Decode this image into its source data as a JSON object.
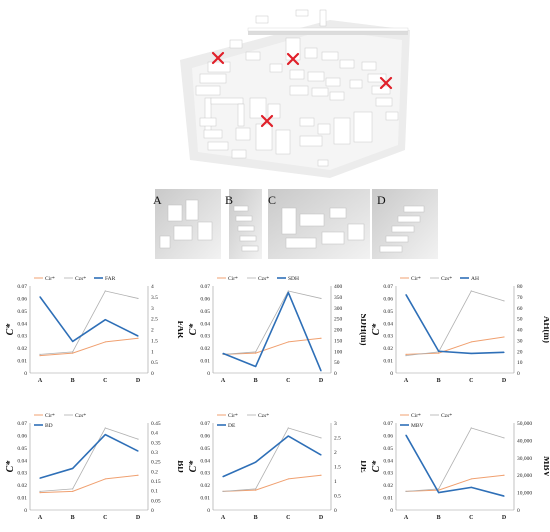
{
  "scene": {
    "panel_labels": [
      "A",
      "B",
      "C",
      "D"
    ],
    "marker_color": "#e0202a"
  },
  "colors": {
    "cir": "#f0a070",
    "czs": "#b0b0b0",
    "metric": "#2e6fb7"
  },
  "chart_data": [
    {
      "type": "line",
      "categories": [
        "A",
        "B",
        "C",
        "D"
      ],
      "ylabel": "C*",
      "y2label": "FAR",
      "ylim": [
        0,
        0.07
      ],
      "yticks": [
        "0",
        "0.01",
        "0.02",
        "0.03",
        "0.04",
        "0.05",
        "0.06",
        "0.07"
      ],
      "y2lim": [
        0,
        4
      ],
      "y2ticks": [
        "0",
        "0.5",
        "1",
        "1.5",
        "2",
        "2.5",
        "3",
        "3.5",
        "4"
      ],
      "legend": "top-left",
      "series": [
        {
          "name": "Cir*",
          "values": [
            0.014,
            0.016,
            0.025,
            0.028
          ],
          "axis": "left"
        },
        {
          "name": "Czs*",
          "values": [
            0.015,
            0.017,
            0.066,
            0.06
          ],
          "axis": "left"
        },
        {
          "name": "FAR",
          "values": [
            3.5,
            1.45,
            2.45,
            1.7
          ],
          "axis": "right"
        }
      ]
    },
    {
      "type": "line",
      "categories": [
        "A",
        "B",
        "C",
        "D"
      ],
      "ylabel": "C*",
      "y2label": "SDH(m)",
      "ylim": [
        0,
        0.07
      ],
      "yticks": [
        "0",
        "0.01",
        "0.02",
        "0.03",
        "0.04",
        "0.05",
        "0.06",
        "0.07"
      ],
      "y2lim": [
        0,
        400
      ],
      "y2ticks": [
        "0",
        "50",
        "100",
        "150",
        "200",
        "250",
        "300",
        "350",
        "400"
      ],
      "legend": "top-left",
      "series": [
        {
          "name": "Cir*",
          "values": [
            0.015,
            0.016,
            0.025,
            0.028
          ],
          "axis": "left"
        },
        {
          "name": "Czs*",
          "values": [
            0.015,
            0.017,
            0.066,
            0.06
          ],
          "axis": "left"
        },
        {
          "name": "SDH",
          "values": [
            90,
            30,
            370,
            10
          ],
          "axis": "right"
        }
      ]
    },
    {
      "type": "line",
      "categories": [
        "A",
        "B",
        "C",
        "D"
      ],
      "ylabel": "C*",
      "y2label": "AH(m)",
      "ylim": [
        0,
        0.07
      ],
      "yticks": [
        "0",
        "0.01",
        "0.02",
        "0.03",
        "0.04",
        "0.05",
        "0.06",
        "0.07"
      ],
      "y2lim": [
        0,
        80
      ],
      "y2ticks": [
        "0",
        "10",
        "20",
        "30",
        "40",
        "50",
        "60",
        "70",
        "80"
      ],
      "legend": "top-left",
      "series": [
        {
          "name": "Cir*",
          "values": [
            0.015,
            0.016,
            0.025,
            0.029
          ],
          "axis": "left"
        },
        {
          "name": "Czs*",
          "values": [
            0.014,
            0.017,
            0.066,
            0.058
          ],
          "axis": "left"
        },
        {
          "name": "AH",
          "values": [
            72,
            20,
            18,
            19
          ],
          "axis": "right"
        }
      ]
    },
    {
      "type": "line",
      "categories": [
        "A",
        "B",
        "C",
        "D"
      ],
      "ylabel": "C*",
      "y2label": "BD",
      "ylim": [
        0,
        0.07
      ],
      "yticks": [
        "0",
        "0.01",
        "0.02",
        "0.03",
        "0.04",
        "0.05",
        "0.06",
        "0.07"
      ],
      "y2lim": [
        0,
        0.45
      ],
      "y2ticks": [
        "0",
        "0.05",
        "0.1",
        "0.15",
        "0.2",
        "0.25",
        "0.3",
        "0.35",
        "0.4",
        "0.45"
      ],
      "legend": "top-left",
      "series": [
        {
          "name": "Cir*",
          "values": [
            0.014,
            0.015,
            0.025,
            0.028
          ],
          "axis": "left"
        },
        {
          "name": "Czs*",
          "values": [
            0.015,
            0.017,
            0.066,
            0.057
          ],
          "axis": "left"
        },
        {
          "name": "BD",
          "values": [
            0.165,
            0.215,
            0.39,
            0.305
          ],
          "axis": "right"
        }
      ]
    },
    {
      "type": "line",
      "categories": [
        "A",
        "B",
        "C",
        "D"
      ],
      "ylabel": "C*",
      "y2label": "DE",
      "ylim": [
        0,
        0.07
      ],
      "yticks": [
        "0",
        "0.01",
        "0.02",
        "0.03",
        "0.04",
        "0.05",
        "0.06",
        "0.07"
      ],
      "y2lim": [
        0,
        3
      ],
      "y2ticks": [
        "0",
        "0.5",
        "1",
        "1.5",
        "2",
        "2.5",
        "3"
      ],
      "legend": "top-left",
      "series": [
        {
          "name": "Cir*",
          "values": [
            0.015,
            0.016,
            0.025,
            0.028
          ],
          "axis": "left"
        },
        {
          "name": "Czs*",
          "values": [
            0.015,
            0.017,
            0.066,
            0.058
          ],
          "axis": "left"
        },
        {
          "name": "DE",
          "values": [
            1.15,
            1.65,
            2.55,
            1.9
          ],
          "axis": "right"
        }
      ]
    },
    {
      "type": "line",
      "categories": [
        "A",
        "B",
        "C",
        "D"
      ],
      "ylabel": "C*",
      "y2label": "MBV",
      "ylim": [
        0,
        0.07
      ],
      "yticks": [
        "0",
        "0.01",
        "0.02",
        "0.03",
        "0.04",
        "0.05",
        "0.06",
        "0.07"
      ],
      "y2lim": [
        0,
        50000
      ],
      "y2ticks": [
        "0",
        "10,000",
        "20,000",
        "30,000",
        "40,000",
        "50,000"
      ],
      "legend": "top-left",
      "series": [
        {
          "name": "Cir*",
          "values": [
            0.015,
            0.016,
            0.025,
            0.028
          ],
          "axis": "left"
        },
        {
          "name": "Czs*",
          "values": [
            0.015,
            0.017,
            0.066,
            0.058
          ],
          "axis": "left"
        },
        {
          "name": "MBV",
          "values": [
            43000,
            10000,
            13000,
            8000
          ],
          "axis": "right"
        }
      ]
    }
  ]
}
